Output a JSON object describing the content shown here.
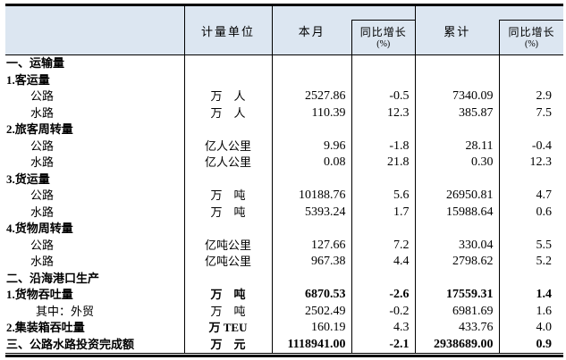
{
  "colors": {
    "header_bg": "#dce6f1",
    "border": "#000000",
    "text": "#000000"
  },
  "table": {
    "header": {
      "rowlabel": "",
      "unit": "计量单位",
      "month": "本月",
      "month_yoy_line1": "同比增长",
      "month_yoy_line2": "(%)",
      "cumulative": "累计",
      "cum_yoy_line1": "同比增长",
      "cum_yoy_line2": "(%)"
    },
    "rows": [
      {
        "label": "一、运输量",
        "indent": 0,
        "bold": true,
        "unit": "",
        "month": "",
        "month_yoy": "",
        "cum": "",
        "cum_yoy": ""
      },
      {
        "label": "1.客运量",
        "indent": 0,
        "bold": true,
        "unit": "",
        "month": "",
        "month_yoy": "",
        "cum": "",
        "cum_yoy": ""
      },
      {
        "label": "公路",
        "indent": 1,
        "bold": false,
        "unit": "万　人",
        "month": "2527.86",
        "month_yoy": "-0.5",
        "cum": "7340.09",
        "cum_yoy": "2.9"
      },
      {
        "label": "水路",
        "indent": 1,
        "bold": false,
        "unit": "万　人",
        "month": "110.39",
        "month_yoy": "12.3",
        "cum": "385.87",
        "cum_yoy": "7.5"
      },
      {
        "label": "2.旅客周转量",
        "indent": 0,
        "bold": true,
        "unit": "",
        "month": "",
        "month_yoy": "",
        "cum": "",
        "cum_yoy": ""
      },
      {
        "label": "公路",
        "indent": 1,
        "bold": false,
        "unit": "亿人公里",
        "month": "9.96",
        "month_yoy": "-1.8",
        "cum": "28.11",
        "cum_yoy": "-0.4"
      },
      {
        "label": "水路",
        "indent": 1,
        "bold": false,
        "unit": "亿人公里",
        "month": "0.08",
        "month_yoy": "21.8",
        "cum": "0.30",
        "cum_yoy": "12.3"
      },
      {
        "label": "3.货运量",
        "indent": 0,
        "bold": true,
        "unit": "",
        "month": "",
        "month_yoy": "",
        "cum": "",
        "cum_yoy": ""
      },
      {
        "label": "公路",
        "indent": 1,
        "bold": false,
        "unit": "万　吨",
        "month": "10188.76",
        "month_yoy": "5.6",
        "cum": "26950.81",
        "cum_yoy": "4.7"
      },
      {
        "label": "水路",
        "indent": 1,
        "bold": false,
        "unit": "万　吨",
        "month": "5393.24",
        "month_yoy": "1.7",
        "cum": "15988.64",
        "cum_yoy": "0.6"
      },
      {
        "label": "4.货物周转量",
        "indent": 0,
        "bold": true,
        "unit": "",
        "month": "",
        "month_yoy": "",
        "cum": "",
        "cum_yoy": ""
      },
      {
        "label": "公路",
        "indent": 1,
        "bold": false,
        "unit": "亿吨公里",
        "month": "127.66",
        "month_yoy": "7.2",
        "cum": "330.04",
        "cum_yoy": "5.5"
      },
      {
        "label": "水路",
        "indent": 1,
        "bold": false,
        "unit": "亿吨公里",
        "month": "967.38",
        "month_yoy": "4.4",
        "cum": "2798.62",
        "cum_yoy": "5.2"
      },
      {
        "label": "二、沿海港口生产",
        "indent": 0,
        "bold": true,
        "unit": "",
        "month": "",
        "month_yoy": "",
        "cum": "",
        "cum_yoy": ""
      },
      {
        "label": "1.货物吞吐量",
        "indent": 0,
        "bold": true,
        "unit": "万　吨",
        "unit_bold": true,
        "values_bold": true,
        "month": "6870.53",
        "month_yoy": "-2.6",
        "cum": "17559.31",
        "cum_yoy": "1.4"
      },
      {
        "label": "其中：外贸",
        "indent": 2,
        "bold": false,
        "unit": "万　吨",
        "month": "2502.49",
        "month_yoy": "-0.2",
        "cum": "6981.69",
        "cum_yoy": "1.6"
      },
      {
        "label": "2.集装箱吞吐量",
        "indent": 0,
        "bold": true,
        "unit": "万 TEU",
        "unit_bold": true,
        "month": "160.19",
        "month_yoy": "4.3",
        "cum": "433.76",
        "cum_yoy": "4.0"
      },
      {
        "label": "三、公路水路投资完成额",
        "indent": 0,
        "bold": true,
        "unit": "万　元",
        "unit_bold": true,
        "values_bold": true,
        "month": "1118941.00",
        "month_yoy": "-2.1",
        "cum": "2938689.00",
        "cum_yoy": "0.9"
      }
    ]
  }
}
